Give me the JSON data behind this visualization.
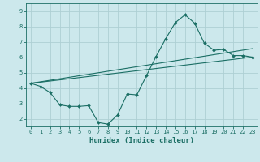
{
  "title": "",
  "xlabel": "Humidex (Indice chaleur)",
  "ylabel": "",
  "background_color": "#cce8ec",
  "grid_color": "#aecfd4",
  "line_color": "#1a6e64",
  "xlim": [
    -0.5,
    23.5
  ],
  "ylim": [
    1.5,
    9.5
  ],
  "xticks": [
    0,
    1,
    2,
    3,
    4,
    5,
    6,
    7,
    8,
    9,
    10,
    11,
    12,
    13,
    14,
    15,
    16,
    17,
    18,
    19,
    20,
    21,
    22,
    23
  ],
  "yticks": [
    2,
    3,
    4,
    5,
    6,
    7,
    8,
    9
  ],
  "line1_x": [
    0,
    1,
    2,
    3,
    4,
    5,
    6,
    7,
    8,
    9,
    10,
    11,
    12,
    13,
    14,
    15,
    16,
    17,
    18,
    19,
    20,
    21,
    22,
    23
  ],
  "line1_y": [
    4.3,
    4.1,
    3.7,
    2.9,
    2.8,
    2.8,
    2.85,
    1.75,
    1.65,
    2.25,
    3.6,
    3.55,
    4.8,
    6.05,
    7.2,
    8.25,
    8.75,
    8.2,
    6.9,
    6.45,
    6.5,
    6.1,
    6.1,
    6.0
  ],
  "line2_x": [
    0,
    23
  ],
  "line2_y": [
    4.3,
    6.0
  ],
  "line3_x": [
    0,
    23
  ],
  "line3_y": [
    4.3,
    6.55
  ],
  "xlabel_fontsize": 6.5,
  "tick_fontsize": 5.0
}
